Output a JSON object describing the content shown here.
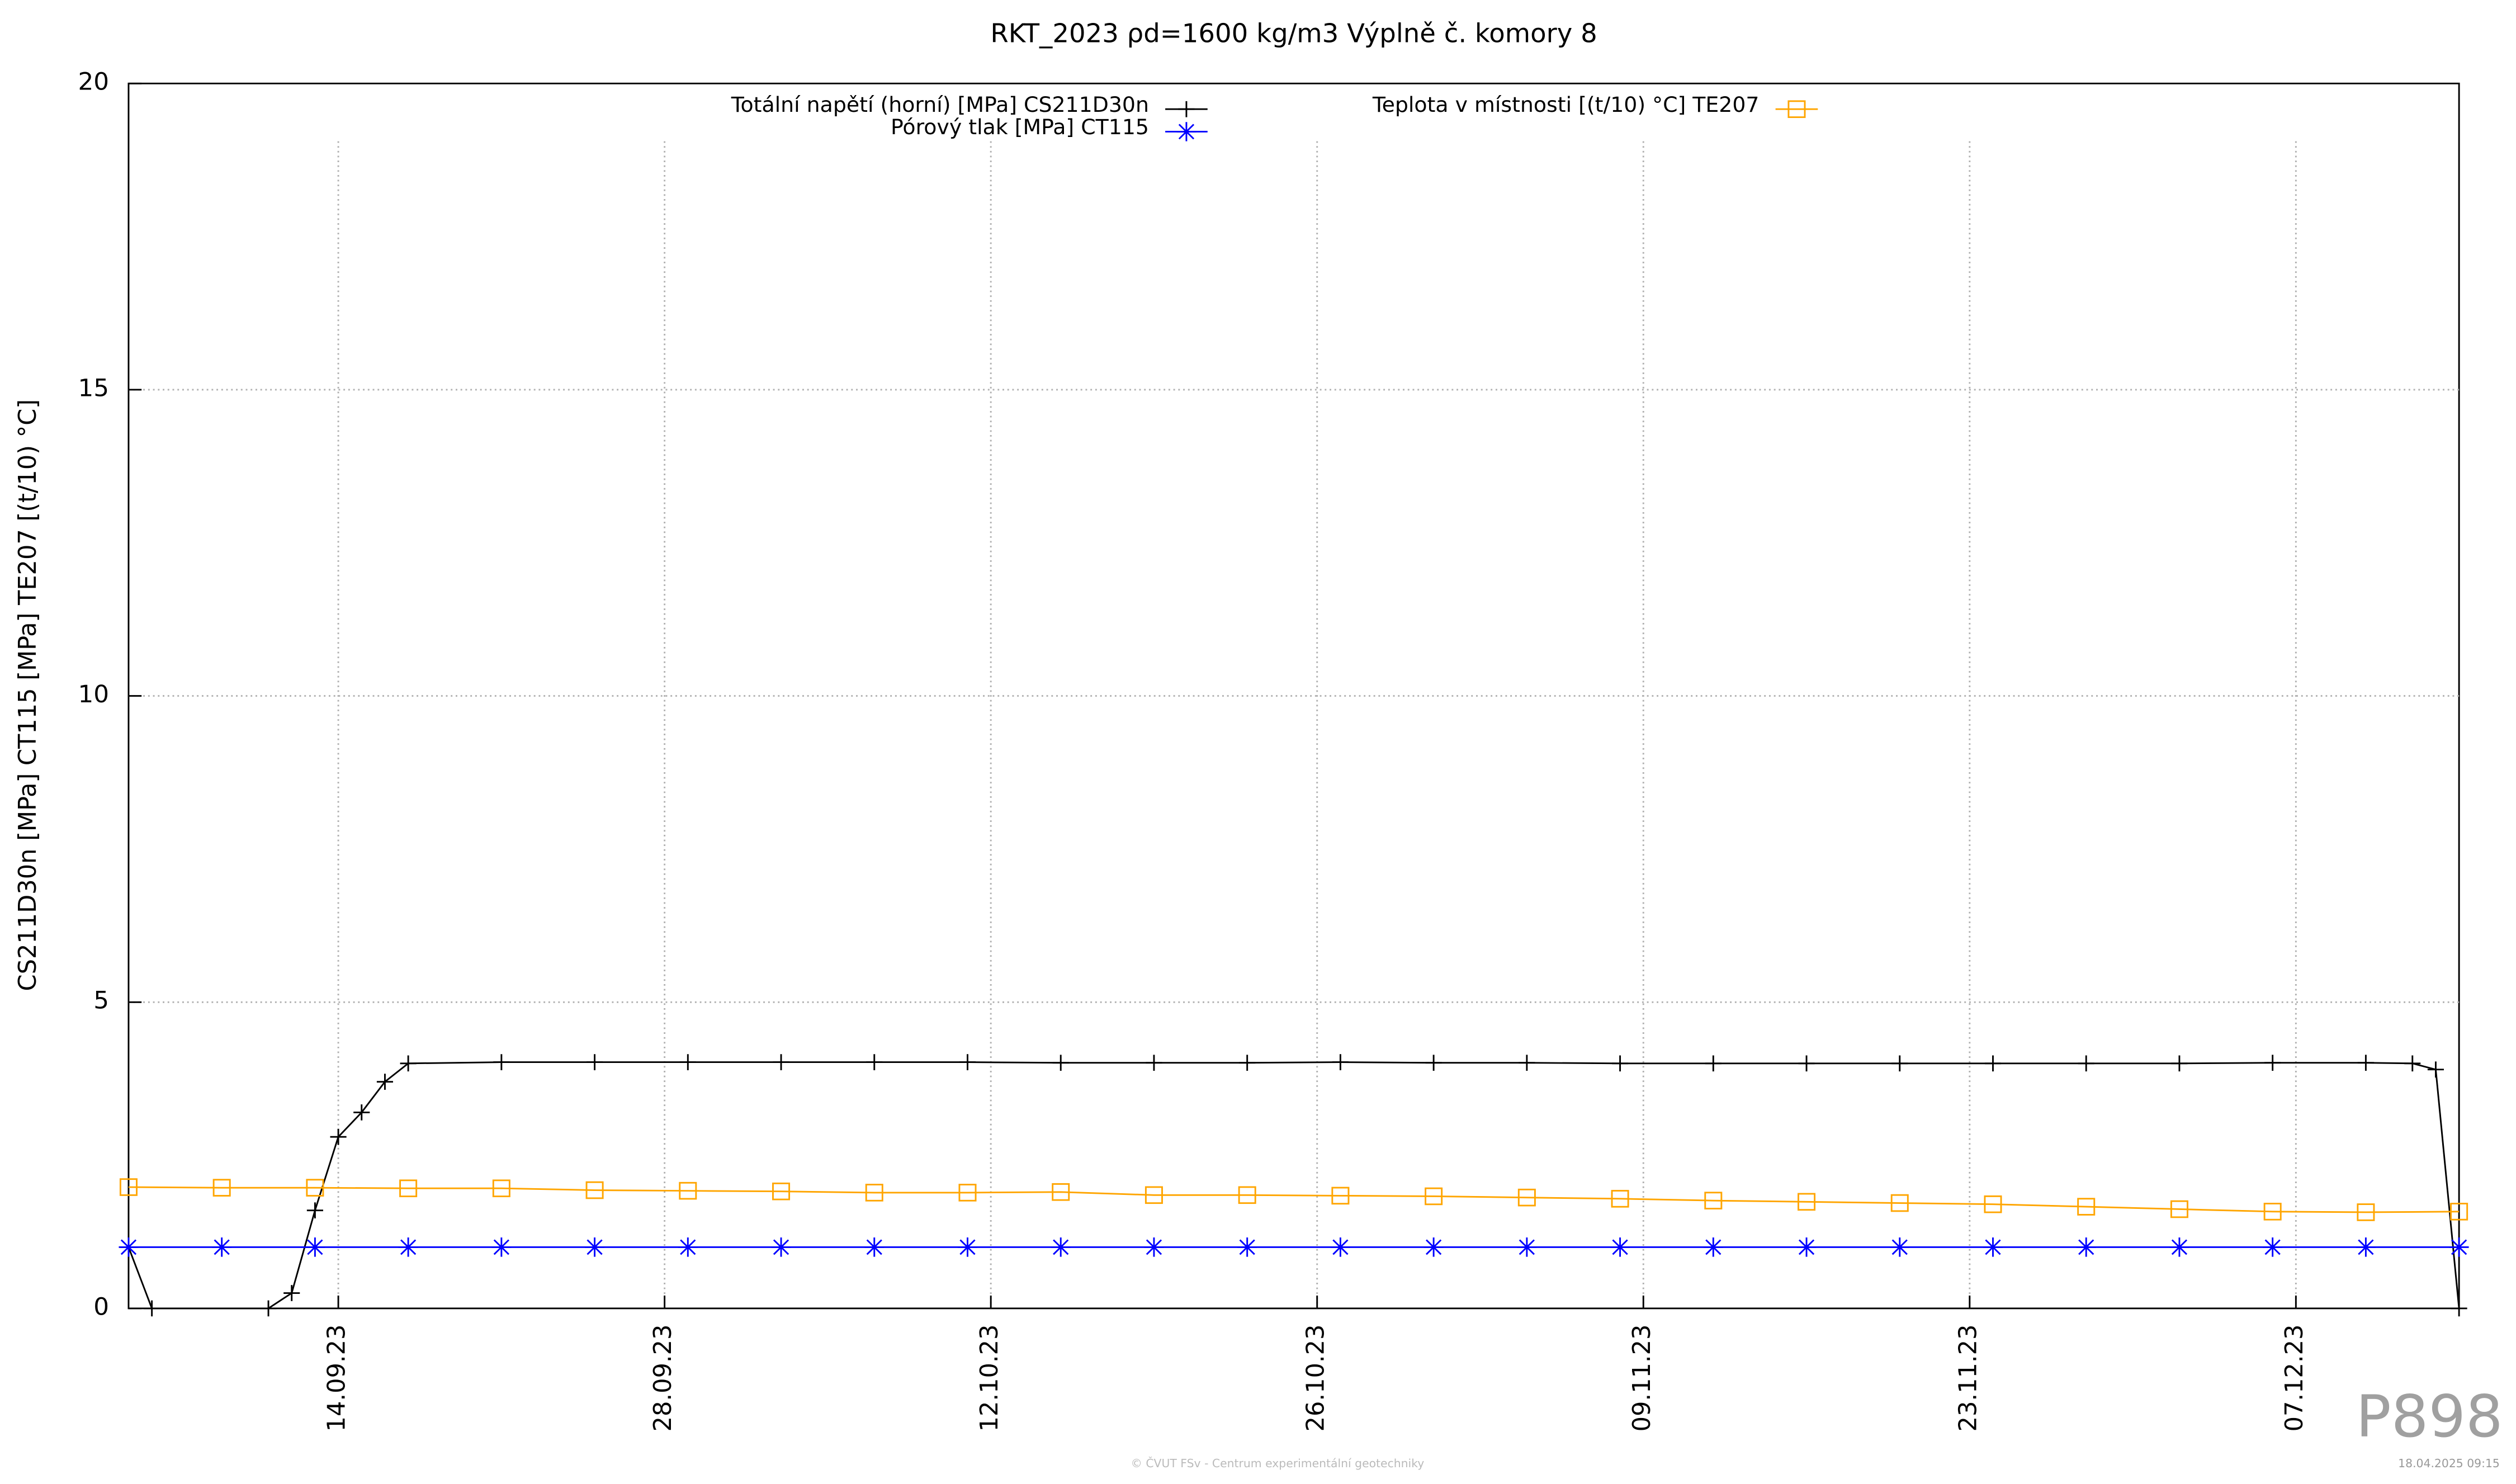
{
  "chart_data": {
    "type": "line",
    "title": "RKT_2023 ρd=1600 kg/m3 Výplně č. komory 8",
    "y_label": "CS211D30n [MPa] CT115 [MPa] TE207 [(t/10) °C]",
    "xlim": [
      "05.09.23",
      "14.12.23"
    ],
    "xticks": [
      "14.09.23",
      "28.09.23",
      "12.10.23",
      "26.10.23",
      "09.11.23",
      "23.11.23",
      "07.12.23"
    ],
    "ylim": [
      0,
      20
    ],
    "yticks": [
      0,
      5,
      10,
      15,
      20
    ],
    "grid": true,
    "series": [
      {
        "name": "Totální napětí (horní) [MPa] CS211D30n",
        "color": "#000000",
        "marker": "plus",
        "x": [
          "05.09.23",
          "06.09.23",
          "11.09.23",
          "12.09.23",
          "13.09.23",
          "14.09.23",
          "15.09.23",
          "16.09.23",
          "17.09.23",
          "21.09.23",
          "25.09.23",
          "29.09.23",
          "03.10.23",
          "07.10.23",
          "11.10.23",
          "15.10.23",
          "19.10.23",
          "23.10.23",
          "27.10.23",
          "31.10.23",
          "04.11.23",
          "08.11.23",
          "12.11.23",
          "16.11.23",
          "20.11.23",
          "24.11.23",
          "28.11.23",
          "02.12.23",
          "06.12.23",
          "10.12.23",
          "12.12.23",
          "13.12.23",
          "14.12.23"
        ],
        "values": [
          1.0,
          0,
          0,
          0.25,
          1.6,
          2.8,
          3.2,
          3.7,
          4.0,
          4.02,
          4.02,
          4.02,
          4.02,
          4.02,
          4.02,
          4.01,
          4.01,
          4.01,
          4.02,
          4.01,
          4.01,
          4.0,
          4.0,
          4.0,
          4.0,
          4.0,
          4.0,
          4.0,
          4.01,
          4.01,
          4.0,
          3.9,
          0
        ]
      },
      {
        "name": "Pórový tlak [MPa] CT115",
        "color": "#0000ff",
        "marker": "asterisk",
        "x": [
          "05.09.23",
          "09.09.23",
          "13.09.23",
          "17.09.23",
          "21.09.23",
          "25.09.23",
          "29.09.23",
          "03.10.23",
          "07.10.23",
          "11.10.23",
          "15.10.23",
          "19.10.23",
          "23.10.23",
          "27.10.23",
          "31.10.23",
          "04.11.23",
          "08.11.23",
          "12.11.23",
          "16.11.23",
          "20.11.23",
          "24.11.23",
          "28.11.23",
          "02.12.23",
          "06.12.23",
          "10.12.23",
          "14.12.23"
        ],
        "values": [
          1.0,
          1.0,
          1.0,
          1.0,
          1.0,
          1.0,
          1.0,
          1.0,
          1.0,
          1.0,
          1.0,
          1.0,
          1.0,
          1.0,
          1.0,
          1.0,
          1.0,
          1.0,
          1.0,
          1.0,
          1.0,
          1.0,
          1.0,
          1.0,
          1.0,
          1.0
        ]
      },
      {
        "name": "Teplota v místnosti [(t/10) °C] TE207",
        "color": "#ffa500",
        "marker": "square",
        "x": [
          "05.09.23",
          "09.09.23",
          "13.09.23",
          "17.09.23",
          "21.09.23",
          "25.09.23",
          "29.09.23",
          "03.10.23",
          "07.10.23",
          "11.10.23",
          "15.10.23",
          "19.10.23",
          "23.10.23",
          "27.10.23",
          "31.10.23",
          "04.11.23",
          "08.11.23",
          "12.11.23",
          "16.11.23",
          "20.11.23",
          "24.11.23",
          "28.11.23",
          "02.12.23",
          "06.12.23",
          "10.12.23",
          "14.12.23"
        ],
        "values": [
          1.98,
          1.97,
          1.97,
          1.96,
          1.96,
          1.93,
          1.92,
          1.91,
          1.89,
          1.89,
          1.9,
          1.85,
          1.85,
          1.84,
          1.83,
          1.81,
          1.79,
          1.76,
          1.74,
          1.72,
          1.7,
          1.66,
          1.62,
          1.58,
          1.57,
          1.58
        ]
      }
    ],
    "watermark": "P898",
    "footer": "© ČVUT FSv - Centrum experimentální geotechniky",
    "timestamp": "18.04.2025 09:15"
  }
}
